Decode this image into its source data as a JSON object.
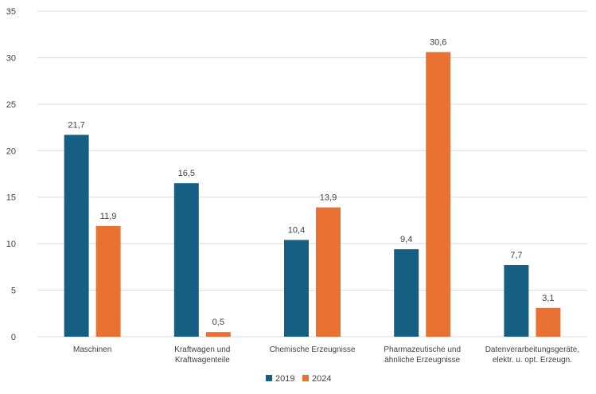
{
  "chart_data": {
    "type": "bar",
    "title": "",
    "xlabel": "",
    "ylabel": "",
    "ylim": [
      0,
      35
    ],
    "yticks": [
      0,
      5,
      10,
      15,
      20,
      25,
      30,
      35
    ],
    "grid": true,
    "legend_position": "bottom",
    "categories": [
      [
        "Maschinen"
      ],
      [
        "Kraftwagen und",
        "Kraftwagenteile"
      ],
      [
        "Chemische Erzeugnisse"
      ],
      [
        "Pharmazeutische und",
        "ähnliche Erzeugnisse"
      ],
      [
        "Datenverarbeitungsgeräte,",
        "elektr. u. opt. Erzeugn."
      ]
    ],
    "series": [
      {
        "name": "2019",
        "color": "#156082",
        "values": [
          21.7,
          16.5,
          10.4,
          9.4,
          7.7
        ],
        "labels": [
          "21,7",
          "16,5",
          "10,4",
          "9,4",
          "7,7"
        ]
      },
      {
        "name": "2024",
        "color": "#e97132",
        "values": [
          11.9,
          0.5,
          13.9,
          30.6,
          3.1
        ],
        "labels": [
          "11,9",
          "0,5",
          "13,9",
          "30,6",
          "3,1"
        ]
      }
    ]
  }
}
